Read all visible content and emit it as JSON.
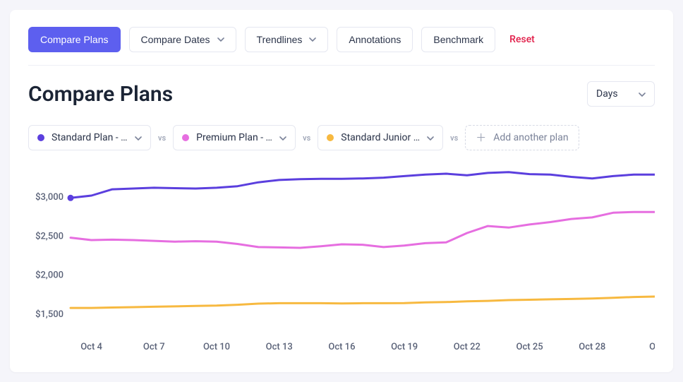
{
  "toolbar": {
    "compare_plans": "Compare Plans",
    "compare_dates": "Compare Dates",
    "trendlines": "Trendlines",
    "annotations": "Annotations",
    "benchmark": "Benchmark",
    "reset": "Reset"
  },
  "title": "Compare Plans",
  "interval_selector": {
    "label": "Days"
  },
  "series_chips": {
    "vs": "vs",
    "add_label": "Add another plan",
    "plans": [
      {
        "label": "Standard Plan - …",
        "color": "#5b3fde"
      },
      {
        "label": "Premium Plan - …",
        "color": "#e66ee0"
      },
      {
        "label": "Standard Junior …",
        "color": "#f7b940"
      }
    ]
  },
  "chart": {
    "type": "line",
    "background_color": "#ffffff",
    "grid_color": "#eef0f6",
    "line_width": 3,
    "y_axis": {
      "min": 1300,
      "max": 3400,
      "ticks": [
        {
          "value": 1500,
          "label": "$1,500"
        },
        {
          "value": 2000,
          "label": "$2,000"
        },
        {
          "value": 2500,
          "label": "$2,500"
        },
        {
          "value": 3000,
          "label": "$3,000"
        }
      ]
    },
    "x_axis": {
      "count": 29,
      "ticks": [
        {
          "index": 1,
          "label": "Oct 4"
        },
        {
          "index": 4,
          "label": "Oct 7"
        },
        {
          "index": 7,
          "label": "Oct 10"
        },
        {
          "index": 10,
          "label": "Oct 13"
        },
        {
          "index": 13,
          "label": "Oct 16"
        },
        {
          "index": 16,
          "label": "Oct 19"
        },
        {
          "index": 19,
          "label": "Oct 22"
        },
        {
          "index": 22,
          "label": "Oct 25"
        },
        {
          "index": 25,
          "label": "Oct 28"
        },
        {
          "index": 28,
          "label": "Oc"
        }
      ]
    },
    "series": [
      {
        "name": "Standard Plan",
        "color": "#5b3fde",
        "values": [
          2990,
          3020,
          3100,
          3110,
          3120,
          3115,
          3110,
          3120,
          3140,
          3190,
          3220,
          3230,
          3235,
          3235,
          3240,
          3250,
          3270,
          3290,
          3300,
          3280,
          3310,
          3320,
          3295,
          3290,
          3260,
          3240,
          3270,
          3290,
          3290
        ]
      },
      {
        "name": "Premium Plan",
        "color": "#e66ee0",
        "values": [
          2480,
          2450,
          2455,
          2450,
          2440,
          2430,
          2435,
          2430,
          2400,
          2360,
          2355,
          2350,
          2370,
          2395,
          2390,
          2360,
          2380,
          2410,
          2420,
          2540,
          2630,
          2610,
          2650,
          2680,
          2720,
          2740,
          2800,
          2810,
          2810
        ]
      },
      {
        "name": "Standard Junior",
        "color": "#f7b940",
        "values": [
          1580,
          1580,
          1585,
          1590,
          1595,
          1600,
          1605,
          1610,
          1620,
          1635,
          1640,
          1640,
          1640,
          1638,
          1640,
          1640,
          1642,
          1650,
          1655,
          1665,
          1670,
          1680,
          1685,
          1690,
          1695,
          1700,
          1710,
          1720,
          1725
        ]
      }
    ]
  },
  "colors": {
    "primary": "#5d5fef",
    "text": "#2b344a",
    "muted": "#9aa1b3"
  }
}
